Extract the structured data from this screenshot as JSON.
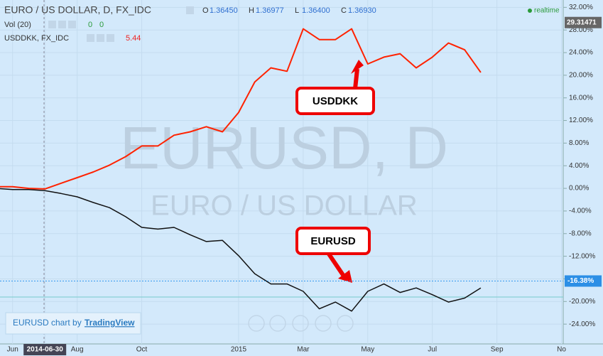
{
  "chart_data": {
    "type": "line",
    "title": "EURO / US DOLLAR, D, FX_IDC",
    "quote": [
      {
        "name": "O",
        "value": 1.3645,
        "label": "1.36450"
      },
      {
        "name": "H",
        "value": 1.36977,
        "label": "1.36977"
      },
      {
        "name": "L",
        "value": 1.364,
        "label": "1.36400"
      },
      {
        "name": "C",
        "value": 1.3693,
        "label": "1.36930"
      }
    ],
    "volume": {
      "name": "Vol (20)",
      "values": [
        0,
        0
      ]
    },
    "compare": {
      "name": "USDDKK, FX_IDC",
      "value": 5.44
    },
    "status": "realtime",
    "watermark": [
      "EURUSD, D",
      "EURO / US DOLLAR"
    ],
    "callouts": [
      "USDDKK",
      "EURUSD"
    ],
    "credit": [
      "EURUSD chart by",
      "TradingView"
    ],
    "price_label": {
      "value": 29.31471
    },
    "last_label": {
      "value": -16.38,
      "label": "-16.38%"
    },
    "categories": [
      null,
      "Jun",
      null,
      "2014-06-30",
      null,
      "Aug",
      null,
      null,
      null,
      "Oct",
      null,
      null,
      null,
      null,
      null,
      "2015",
      null,
      null,
      null,
      "Mar",
      null,
      null,
      null,
      "May",
      null,
      null,
      null,
      "Jul",
      null,
      null,
      null,
      "Sep",
      null,
      null,
      null,
      "No"
    ],
    "series": [
      {
        "name": "USDDKK",
        "color": "#ff2200",
        "values": [
          0.3,
          0.3,
          0,
          -0.1,
          0.9,
          1.9,
          2.9,
          4.1,
          5.6,
          7.5,
          7.5,
          9.4,
          10.0,
          10.9,
          10.0,
          13.4,
          18.8,
          21.3,
          20.7,
          28.2,
          26.3,
          26.3,
          28.2,
          22.0,
          23.2,
          23.8,
          21.3,
          23.2,
          25.7,
          24.5,
          20.5,
          null,
          null,
          null,
          null,
          null
        ]
      },
      {
        "name": "EURUSD",
        "color": "#111111",
        "values": [
          0,
          -0.2,
          -0.2,
          -0.4,
          -0.9,
          -1.5,
          -2.5,
          -3.4,
          -5.0,
          -6.9,
          -7.2,
          -6.9,
          -8.2,
          -9.4,
          -9.2,
          -11.9,
          -15.1,
          -16.9,
          -16.9,
          -18.2,
          -21.3,
          -20.1,
          -21.7,
          -18.2,
          -16.9,
          -18.4,
          -17.6,
          -18.8,
          -20.1,
          -19.4,
          -17.6,
          null,
          null,
          null,
          null,
          null
        ]
      }
    ],
    "ylim": [
      -27.5,
      33.3
    ],
    "yticks": [
      {
        "value": 32,
        "label": "32.00%"
      },
      {
        "value": 28,
        "label": "28.00%"
      },
      {
        "value": 24,
        "label": "24.00%"
      },
      {
        "value": 20,
        "label": "20.00%"
      },
      {
        "value": 16,
        "label": "16.00%"
      },
      {
        "value": 12,
        "label": "12.00%"
      },
      {
        "value": 8,
        "label": "8.00%"
      },
      {
        "value": 4,
        "label": "4.00%"
      },
      {
        "value": 0,
        "label": "0.00%"
      },
      {
        "value": -4,
        "label": "-4.00%"
      },
      {
        "value": -8,
        "label": "-8.00%"
      },
      {
        "value": -12,
        "label": "-12.00%"
      },
      {
        "value": -16,
        "label": "-16.00%"
      },
      {
        "value": -20,
        "label": "-20.00%"
      },
      {
        "value": -24,
        "label": "-24.00%"
      }
    ],
    "grid": true
  }
}
